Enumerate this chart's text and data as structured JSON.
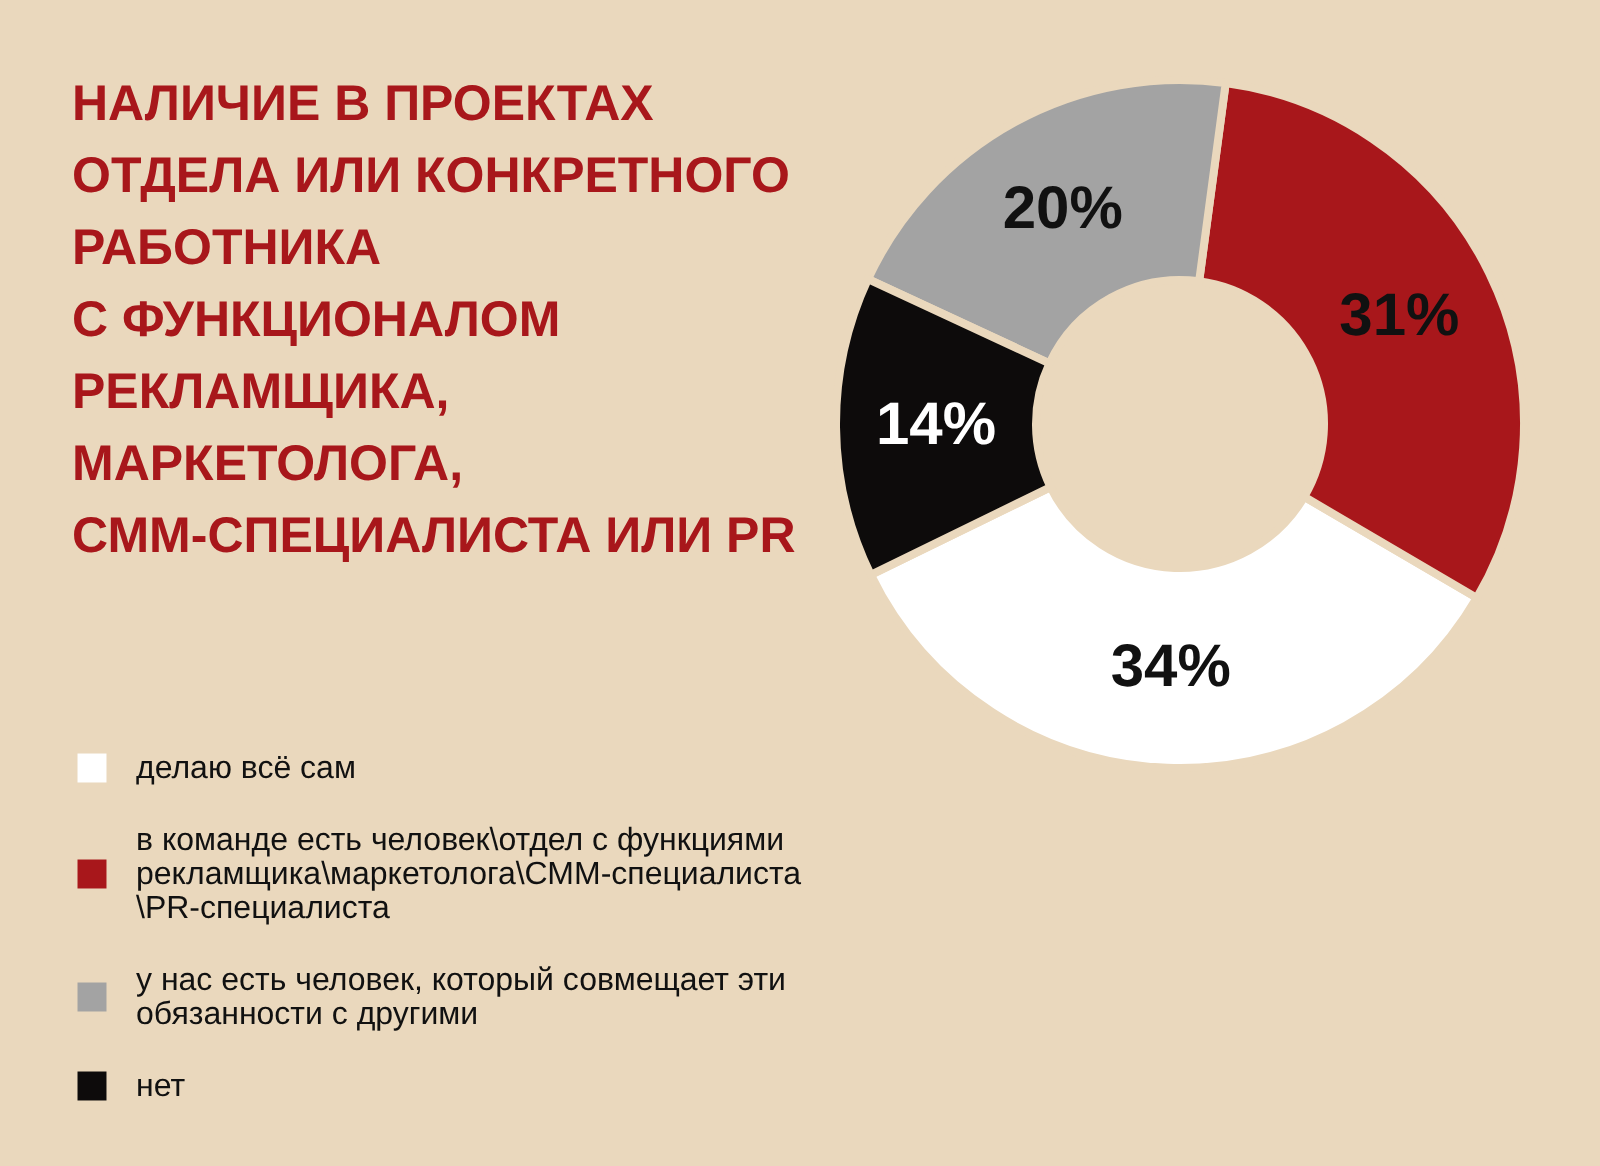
{
  "chart_data": {
    "type": "donut",
    "title": "НАЛИЧИЕ В ПРОЕКТАХ\nОТДЕЛА ИЛИ КОНКРЕТНОГО\nРАБОТНИКА\nС ФУНКЦИОНАЛОМ\nРЕКЛАМЩИКА,\nМАРКЕТОЛОГА,\nСММ-СПЕЦИАЛИСТА ИЛИ PR",
    "categories": [
      "делаю всё сам",
      "в команде есть человек\\отдел с функциями\nрекламщика\\маркетолога\\СММ-специалиста\n\\PR-специалиста",
      "у нас есть человек, который совмещает эти\nобязанности с другими",
      "нет"
    ],
    "values": [
      34,
      31,
      20,
      14
    ],
    "colors": [
      "#ffffff",
      "#a8171b",
      "#a3a3a3",
      "#0d0b0b"
    ],
    "value_labels": [
      "34%",
      "31%",
      "20%",
      "14%"
    ],
    "legend": "bottom left"
  }
}
